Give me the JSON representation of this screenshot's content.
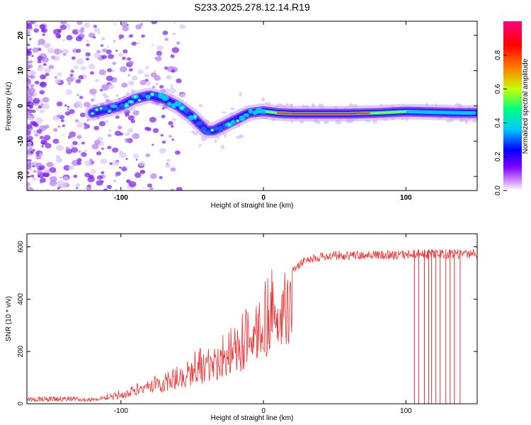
{
  "title": "S233.2025.278.12.14.R19",
  "chart_data": [
    {
      "type": "heatmap",
      "title": "S233.2025.278.12.14.R19",
      "xlabel": "Height of straight line (km)",
      "ylabel": "Frequency (Hz)",
      "xlim": [
        -166,
        150
      ],
      "ylim": [
        -24,
        24
      ],
      "xticks": [
        -100,
        0,
        100
      ],
      "yticks": [
        20,
        10,
        0,
        -10,
        -20
      ],
      "colorbar": {
        "label": "Normalized spectral amplitude",
        "range": [
          0,
          1
        ],
        "ticks": [
          0.0,
          0.2,
          0.4,
          0.6,
          0.8
        ],
        "colormap": [
          "#ffffff",
          "#7f00ff",
          "#0000ff",
          "#00c8ff",
          "#00ff80",
          "#c8ff00",
          "#ff8000",
          "#ff0000",
          "#ff0080"
        ]
      },
      "ridge": {
        "description": "peak spectral frequency versus height",
        "x": [
          -120,
          -110,
          -100,
          -90,
          -80,
          -70,
          -60,
          -50,
          -40,
          -35,
          -30,
          -20,
          -10,
          0,
          10,
          20,
          40,
          60,
          80,
          100,
          120,
          140,
          148
        ],
        "y": [
          -2,
          -1,
          0,
          2,
          3,
          2,
          0,
          -3,
          -7,
          -7,
          -6,
          -4,
          -2,
          -1.5,
          -2,
          -2.2,
          -2.2,
          -2.2,
          -2,
          -1.6,
          -1.8,
          -2,
          -2
        ]
      }
    },
    {
      "type": "line",
      "xlabel": "Height of straight line (km)",
      "ylabel": "SNR (10 * v/v)",
      "xlim": [
        -166,
        150
      ],
      "ylim": [
        0,
        650
      ],
      "xticks": [
        -100,
        0,
        100
      ],
      "yticks": [
        0,
        200,
        400,
        600
      ],
      "color": "#ee3333",
      "envelope": {
        "x": [
          -166,
          -140,
          -120,
          -100,
          -80,
          -60,
          -40,
          -20,
          -10,
          0,
          5,
          10,
          15,
          20,
          30,
          50,
          70,
          90,
          110,
          130,
          150
        ],
        "y": [
          15,
          15,
          20,
          40,
          80,
          120,
          180,
          240,
          300,
          350,
          420,
          380,
          460,
          520,
          570,
          585,
          585,
          585,
          590,
          590,
          590
        ]
      },
      "dropouts_x": [
        106,
        109,
        113,
        116,
        118,
        121,
        124,
        128,
        131,
        134,
        138
      ]
    }
  ]
}
